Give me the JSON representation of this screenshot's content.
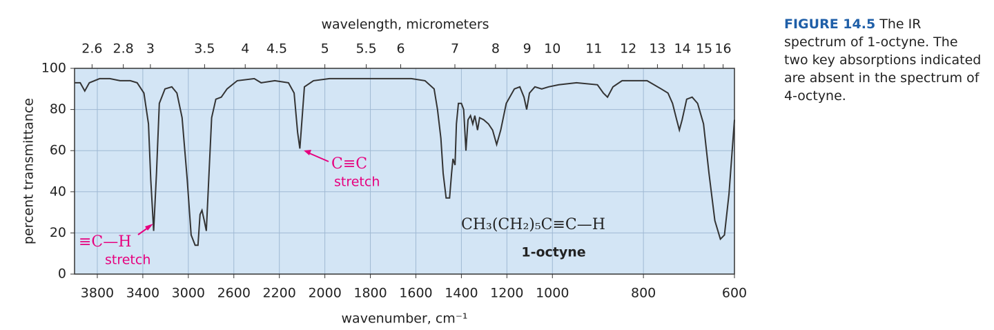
{
  "chart_data": {
    "type": "line",
    "xlabel": "wavenumber, cm⁻¹",
    "x2label": "wavelength, micrometers",
    "ylabel": "percent transmittance",
    "xlim": [
      4000,
      600
    ],
    "xscale_breaks": [
      2200,
      1000
    ],
    "xticks": [
      3800,
      3400,
      3000,
      2600,
      2200,
      2000,
      1800,
      1600,
      1400,
      1200,
      1000,
      800,
      600
    ],
    "x2ticks": [
      2.6,
      2.8,
      3,
      3.5,
      4,
      4.5,
      5,
      5.5,
      6,
      7,
      8,
      9,
      10,
      11,
      12,
      13,
      14,
      15,
      16
    ],
    "ylim": [
      0,
      100
    ],
    "yticks": [
      0,
      20,
      40,
      60,
      80,
      100
    ],
    "grid": true,
    "background": "#d3e5f5",
    "color": "#333333",
    "x": [
      4000,
      3950,
      3910,
      3870,
      3780,
      3690,
      3600,
      3510,
      3450,
      3390,
      3350,
      3330,
      3305,
      3280,
      3255,
      3205,
      3145,
      3100,
      3055,
      3010,
      2975,
      2940,
      2915,
      2897,
      2880,
      2860,
      2842,
      2818,
      2795,
      2758,
      2710,
      2660,
      2570,
      2420,
      2360,
      2240,
      2160,
      2135,
      2120,
      2110,
      2100,
      2090,
      2050,
      1980,
      1770,
      1620,
      1560,
      1520,
      1505,
      1490,
      1480,
      1467,
      1452,
      1443,
      1437,
      1428,
      1422,
      1413,
      1400,
      1390,
      1380,
      1371,
      1360,
      1350,
      1341,
      1329,
      1320,
      1302,
      1281,
      1263,
      1245,
      1227,
      1203,
      1167,
      1143,
      1125,
      1113,
      1101,
      1077,
      1047,
      1017,
      986,
      947,
      901,
      888,
      879,
      867,
      847,
      823,
      792,
      761,
      746,
      736,
      727,
      721,
      715,
      705,
      693,
      681,
      668,
      656,
      643,
      631,
      622,
      612,
      600
    ],
    "values": [
      93,
      93,
      89,
      93,
      95,
      95,
      94,
      94,
      93,
      88,
      73,
      46,
      21,
      49,
      83,
      90,
      91,
      88,
      76,
      46,
      19,
      14,
      14,
      29,
      31,
      26,
      21,
      49,
      76,
      85,
      86,
      90,
      94,
      95,
      93,
      94,
      93,
      88,
      69,
      61,
      76,
      91,
      94,
      95,
      95,
      95,
      94,
      90,
      80,
      66,
      49,
      37,
      37,
      49,
      56,
      53,
      73,
      83,
      83,
      80,
      60,
      75,
      77,
      73,
      77,
      70,
      76,
      75,
      73,
      70,
      63,
      70,
      83,
      90,
      91,
      86,
      80,
      88,
      91,
      90,
      91,
      92,
      93,
      92,
      88,
      86,
      91,
      94,
      94,
      94,
      90,
      88,
      83,
      75,
      70,
      75,
      85,
      86,
      83,
      73,
      49,
      26,
      17,
      19,
      39,
      75
    ],
    "annotations": [
      "≡C—H",
      "stretch",
      "C≡C",
      "stretch",
      "CH₃(CH₂)₅C≡C—H",
      "1-octyne"
    ],
    "caption": {
      "label": "FIGURE 14.5",
      "text": "The IR spectrum of 1-octyne. The two key absorptions indicated are absent in the spectrum of 4-octyne."
    }
  }
}
